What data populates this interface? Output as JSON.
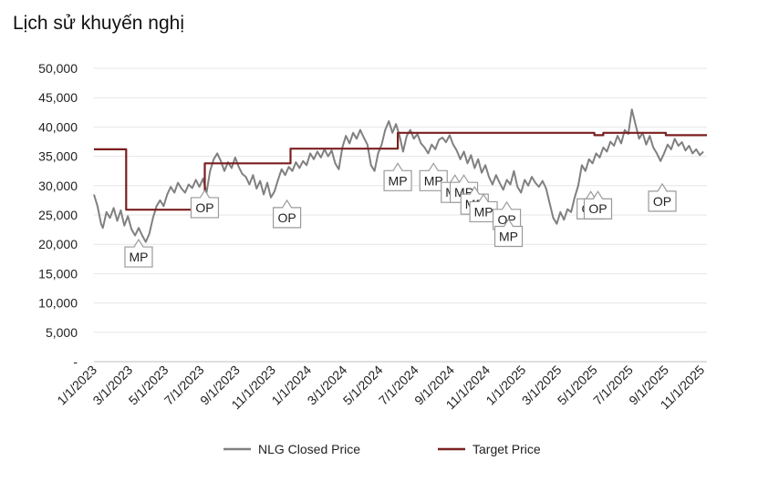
{
  "title": "Lịch sử khuyến nghị",
  "chart_data": {
    "type": "line",
    "title": "Lịch sử khuyến nghị",
    "xlabel": "",
    "ylabel": "",
    "ylim": [
      0,
      50000
    ],
    "y_ticks": [
      "-",
      "5,000",
      "10,000",
      "15,000",
      "20,000",
      "25,000",
      "30,000",
      "35,000",
      "40,000",
      "45,000",
      "50,000"
    ],
    "x_ticks": [
      "1/1/2023",
      "3/1/2023",
      "5/1/2023",
      "7/1/2023",
      "9/1/2023",
      "11/1/2023",
      "1/1/2024",
      "3/1/2024",
      "5/1/2024",
      "7/1/2024",
      "9/1/2024",
      "11/1/2024",
      "1/1/2025",
      "3/1/2025",
      "5/1/2025",
      "7/1/2025",
      "9/1/2025",
      "11/1/2025"
    ],
    "x_range_months": [
      0,
      34.3
    ],
    "legend": [
      "NLG Closed Price",
      "Target Price"
    ],
    "colors": {
      "price": "#808080",
      "target": "#7b1f1f",
      "grid": "#e6e6e6"
    },
    "series": [
      {
        "name": "NLG Closed Price",
        "points": [
          [
            0.0,
            28500
          ],
          [
            0.2,
            26500
          ],
          [
            0.4,
            23500
          ],
          [
            0.5,
            22800
          ],
          [
            0.7,
            25500
          ],
          [
            0.9,
            24500
          ],
          [
            1.1,
            26200
          ],
          [
            1.3,
            24000
          ],
          [
            1.5,
            25800
          ],
          [
            1.7,
            23200
          ],
          [
            1.9,
            24800
          ],
          [
            2.1,
            22600
          ],
          [
            2.3,
            21500
          ],
          [
            2.5,
            22800
          ],
          [
            2.7,
            21500
          ],
          [
            2.9,
            20400
          ],
          [
            3.1,
            21800
          ],
          [
            3.3,
            24500
          ],
          [
            3.5,
            26500
          ],
          [
            3.7,
            27500
          ],
          [
            3.9,
            26500
          ],
          [
            4.1,
            28500
          ],
          [
            4.3,
            29800
          ],
          [
            4.5,
            28800
          ],
          [
            4.7,
            30500
          ],
          [
            4.9,
            29500
          ],
          [
            5.1,
            28800
          ],
          [
            5.3,
            30200
          ],
          [
            5.5,
            29600
          ],
          [
            5.7,
            31000
          ],
          [
            5.9,
            29800
          ],
          [
            6.1,
            31200
          ],
          [
            6.3,
            28800
          ],
          [
            6.5,
            32500
          ],
          [
            6.7,
            34500
          ],
          [
            6.9,
            35500
          ],
          [
            7.1,
            34200
          ],
          [
            7.3,
            32500
          ],
          [
            7.5,
            34000
          ],
          [
            7.7,
            33000
          ],
          [
            7.9,
            34800
          ],
          [
            8.1,
            33200
          ],
          [
            8.3,
            32000
          ],
          [
            8.5,
            31500
          ],
          [
            8.7,
            30200
          ],
          [
            8.9,
            31800
          ],
          [
            9.1,
            29500
          ],
          [
            9.3,
            30800
          ],
          [
            9.5,
            28500
          ],
          [
            9.7,
            30500
          ],
          [
            9.9,
            28000
          ],
          [
            10.1,
            29000
          ],
          [
            10.3,
            31000
          ],
          [
            10.5,
            32800
          ],
          [
            10.7,
            31800
          ],
          [
            10.9,
            33200
          ],
          [
            11.1,
            32500
          ],
          [
            11.3,
            34000
          ],
          [
            11.5,
            33000
          ],
          [
            11.7,
            34200
          ],
          [
            11.9,
            33500
          ],
          [
            12.1,
            35500
          ],
          [
            12.3,
            34500
          ],
          [
            12.5,
            35800
          ],
          [
            12.7,
            34800
          ],
          [
            12.9,
            36200
          ],
          [
            13.1,
            35000
          ],
          [
            13.3,
            36000
          ],
          [
            13.5,
            33800
          ],
          [
            13.7,
            32800
          ],
          [
            13.9,
            36500
          ],
          [
            14.1,
            38500
          ],
          [
            14.3,
            37200
          ],
          [
            14.5,
            39000
          ],
          [
            14.7,
            38000
          ],
          [
            14.9,
            39500
          ],
          [
            15.1,
            38200
          ],
          [
            15.3,
            37000
          ],
          [
            15.5,
            33500
          ],
          [
            15.7,
            32500
          ],
          [
            15.9,
            35500
          ],
          [
            16.1,
            37000
          ],
          [
            16.3,
            39500
          ],
          [
            16.5,
            41000
          ],
          [
            16.7,
            39000
          ],
          [
            16.9,
            40500
          ],
          [
            17.1,
            38500
          ],
          [
            17.3,
            35800
          ],
          [
            17.5,
            38500
          ],
          [
            17.7,
            39500
          ],
          [
            17.9,
            38000
          ],
          [
            18.1,
            38800
          ],
          [
            18.3,
            37200
          ],
          [
            18.5,
            36500
          ],
          [
            18.7,
            35500
          ],
          [
            18.9,
            37000
          ],
          [
            19.1,
            36200
          ],
          [
            19.3,
            37800
          ],
          [
            19.5,
            38200
          ],
          [
            19.7,
            37400
          ],
          [
            19.9,
            38600
          ],
          [
            20.1,
            37000
          ],
          [
            20.3,
            36000
          ],
          [
            20.5,
            34500
          ],
          [
            20.7,
            35800
          ],
          [
            20.9,
            33800
          ],
          [
            21.1,
            35200
          ],
          [
            21.3,
            33000
          ],
          [
            21.5,
            34500
          ],
          [
            21.7,
            32200
          ],
          [
            21.9,
            33500
          ],
          [
            22.1,
            31500
          ],
          [
            22.3,
            30200
          ],
          [
            22.5,
            31800
          ],
          [
            22.7,
            30500
          ],
          [
            22.9,
            29300
          ],
          [
            23.1,
            31000
          ],
          [
            23.3,
            30200
          ],
          [
            23.5,
            32500
          ],
          [
            23.7,
            29800
          ],
          [
            23.9,
            28800
          ],
          [
            24.1,
            31000
          ],
          [
            24.3,
            30000
          ],
          [
            24.5,
            31500
          ],
          [
            24.7,
            30500
          ],
          [
            24.9,
            29800
          ],
          [
            25.1,
            30800
          ],
          [
            25.3,
            29500
          ],
          [
            25.5,
            27000
          ],
          [
            25.7,
            24500
          ],
          [
            25.9,
            23500
          ],
          [
            26.1,
            25500
          ],
          [
            26.3,
            24200
          ],
          [
            26.5,
            26000
          ],
          [
            26.7,
            25500
          ],
          [
            26.9,
            28000
          ],
          [
            27.1,
            30000
          ],
          [
            27.3,
            33500
          ],
          [
            27.5,
            32500
          ],
          [
            27.7,
            34500
          ],
          [
            27.9,
            33800
          ],
          [
            28.1,
            35500
          ],
          [
            28.3,
            34800
          ],
          [
            28.5,
            36500
          ],
          [
            28.7,
            35800
          ],
          [
            28.9,
            37500
          ],
          [
            29.1,
            36800
          ],
          [
            29.3,
            38500
          ],
          [
            29.5,
            37200
          ],
          [
            29.7,
            39500
          ],
          [
            29.9,
            38800
          ],
          [
            30.1,
            43000
          ],
          [
            30.3,
            40500
          ],
          [
            30.5,
            38000
          ],
          [
            30.7,
            39000
          ],
          [
            30.9,
            37000
          ],
          [
            31.1,
            38500
          ],
          [
            31.3,
            36500
          ],
          [
            31.5,
            35500
          ],
          [
            31.7,
            34200
          ],
          [
            31.9,
            35500
          ],
          [
            32.1,
            37000
          ],
          [
            32.3,
            36200
          ],
          [
            32.5,
            38000
          ],
          [
            32.7,
            36800
          ],
          [
            32.9,
            37400
          ],
          [
            33.1,
            36000
          ],
          [
            33.3,
            36800
          ],
          [
            33.5,
            35500
          ],
          [
            33.7,
            36200
          ],
          [
            33.9,
            35200
          ],
          [
            34.1,
            35800
          ]
        ]
      },
      {
        "name": "Target Price",
        "points": [
          [
            0.0,
            36200
          ],
          [
            1.8,
            36200
          ],
          [
            1.8,
            25900
          ],
          [
            6.2,
            25900
          ],
          [
            6.2,
            33800
          ],
          [
            11.0,
            33800
          ],
          [
            11.0,
            36300
          ],
          [
            17.0,
            36300
          ],
          [
            17.0,
            39000
          ],
          [
            28.0,
            39000
          ],
          [
            28.0,
            38600
          ],
          [
            28.5,
            38600
          ],
          [
            28.5,
            39000
          ],
          [
            32.0,
            39000
          ],
          [
            32.0,
            38600
          ],
          [
            34.3,
            38600
          ]
        ]
      }
    ],
    "annotations": [
      {
        "label": "MP",
        "month": 2.5,
        "value": 20800
      },
      {
        "label": "OP",
        "month": 6.2,
        "value": 29200
      },
      {
        "label": "OP",
        "month": 10.8,
        "value": 27500
      },
      {
        "label": "MP",
        "month": 17.0,
        "value": 33800
      },
      {
        "label": "MP",
        "month": 19.0,
        "value": 33800
      },
      {
        "label": "MP",
        "month": 20.2,
        "value": 31800
      },
      {
        "label": "MP",
        "month": 20.7,
        "value": 31800
      },
      {
        "label": "MP",
        "month": 21.3,
        "value": 29800
      },
      {
        "label": "MP",
        "month": 21.8,
        "value": 28500
      },
      {
        "label": "OP",
        "month": 23.1,
        "value": 27200
      },
      {
        "label": "MP",
        "month": 23.2,
        "value": 24300
      },
      {
        "label": "OP",
        "month": 27.8,
        "value": 29000
      },
      {
        "label": "OP",
        "month": 28.2,
        "value": 29000
      },
      {
        "label": "OP",
        "month": 31.8,
        "value": 30300
      }
    ]
  }
}
